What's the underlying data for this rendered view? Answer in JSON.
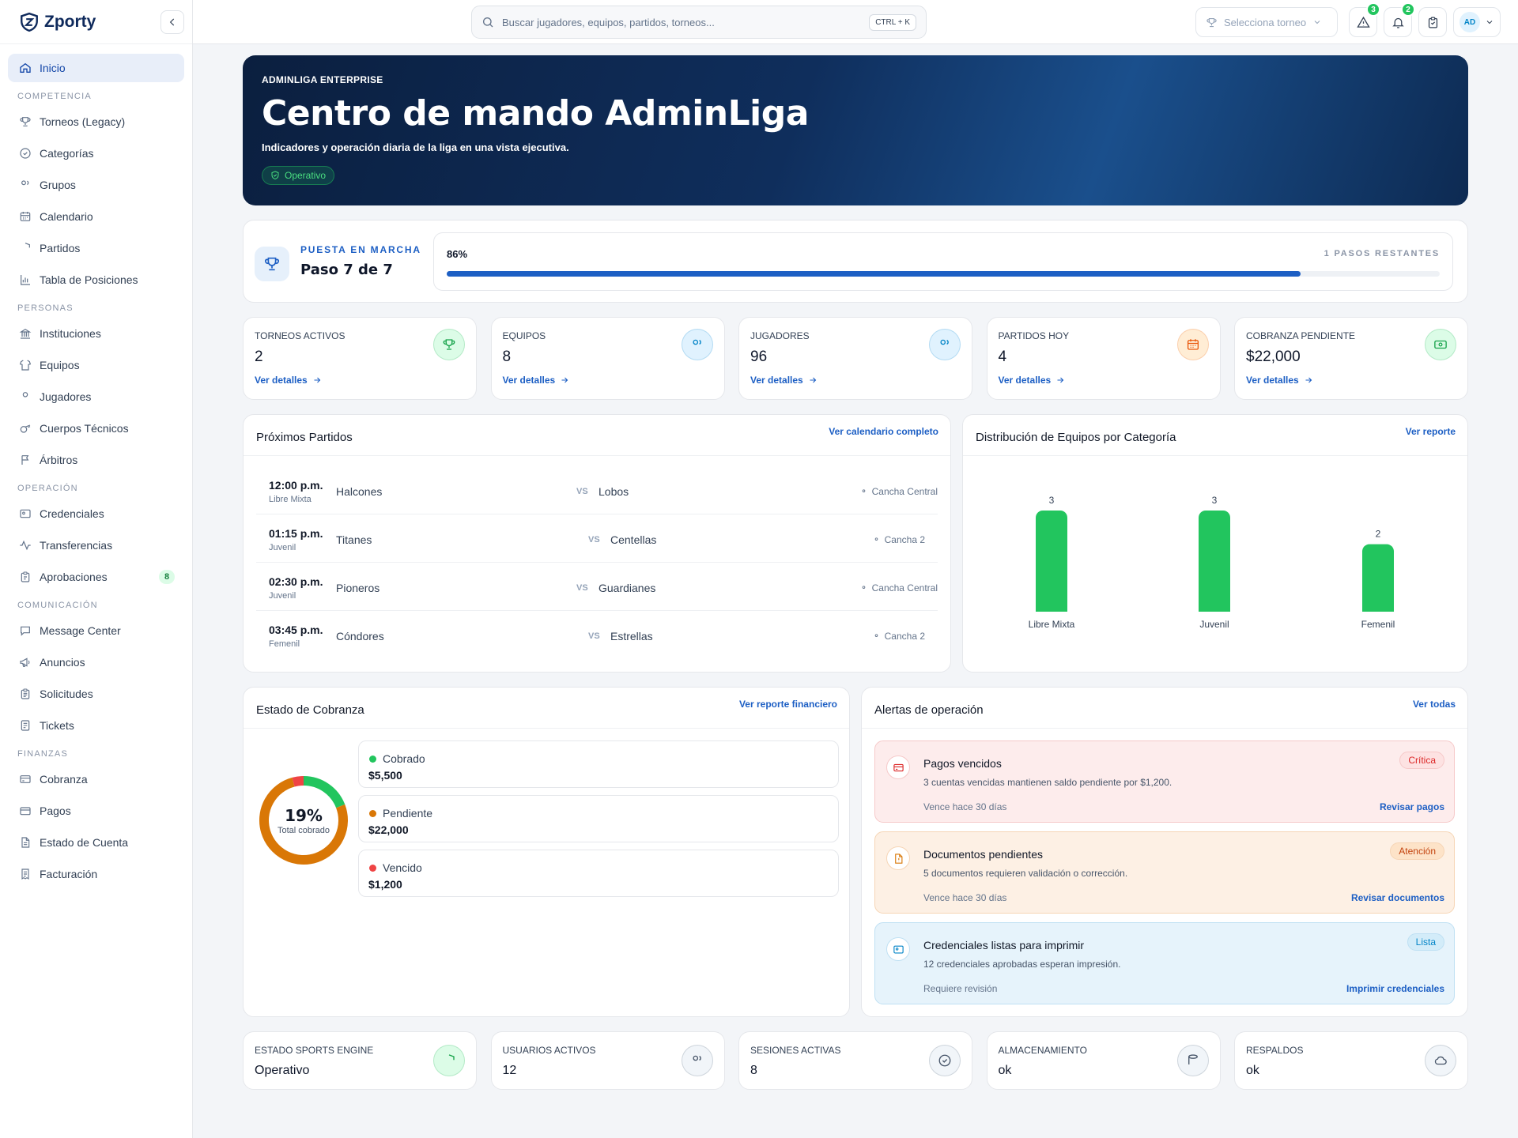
{
  "brand": {
    "name": "Zporty"
  },
  "sidebar": {
    "home": "Inicio",
    "sections": [
      {
        "title": "COMPETENCIA",
        "items": [
          {
            "label": "Torneos (Legacy)",
            "icon": "trophy-icon"
          },
          {
            "label": "Categorías",
            "icon": "circle-check-icon"
          },
          {
            "label": "Grupos",
            "icon": "users-icon"
          },
          {
            "label": "Calendario",
            "icon": "calendar-icon"
          },
          {
            "label": "Partidos",
            "icon": "shield-icon"
          },
          {
            "label": "Tabla de Posiciones",
            "icon": "bar-chart-icon"
          }
        ]
      },
      {
        "title": "PERSONAS",
        "items": [
          {
            "label": "Instituciones",
            "icon": "building-icon"
          },
          {
            "label": "Equipos",
            "icon": "shirt-icon"
          },
          {
            "label": "Jugadores",
            "icon": "user-icon"
          },
          {
            "label": "Cuerpos Técnicos",
            "icon": "whistle-icon"
          },
          {
            "label": "Árbitros",
            "icon": "flag-icon"
          }
        ]
      },
      {
        "title": "OPERACIÓN",
        "items": [
          {
            "label": "Credenciales",
            "icon": "id-card-icon"
          },
          {
            "label": "Transferencias",
            "icon": "activity-icon"
          },
          {
            "label": "Aprobaciones",
            "icon": "clipboard-icon",
            "badge": "8"
          }
        ]
      },
      {
        "title": "COMUNICACIÓN",
        "items": [
          {
            "label": "Message Center",
            "icon": "message-icon"
          },
          {
            "label": "Anuncios",
            "icon": "megaphone-icon"
          },
          {
            "label": "Solicitudes",
            "icon": "clipboard-list-icon"
          },
          {
            "label": "Tickets",
            "icon": "ticket-icon"
          }
        ]
      },
      {
        "title": "FINANZAS",
        "items": [
          {
            "label": "Cobranza",
            "icon": "credit-card-icon"
          },
          {
            "label": "Pagos",
            "icon": "wallet-icon"
          },
          {
            "label": "Estado de Cuenta",
            "icon": "file-icon"
          },
          {
            "label": "Facturación",
            "icon": "receipt-icon"
          }
        ]
      }
    ]
  },
  "topbar": {
    "search_placeholder": "Buscar jugadores, equipos, partidos, torneos...",
    "shortcut": "CTRL + K",
    "tournament_select": "Selecciona torneo",
    "alerts_count": "3",
    "notifications_count": "2",
    "avatar": "AD"
  },
  "hero": {
    "eyebrow": "ADMINLIGA ENTERPRISE",
    "title": "Centro de mando AdminLiga",
    "subtitle": "Indicadores y operación diaria de la liga en una vista ejecutiva.",
    "status": "Operativo"
  },
  "onboarding": {
    "eyebrow": "PUESTA EN MARCHA",
    "step": "Paso 7 de 7",
    "percent_label": "86%",
    "progress": 0.86,
    "remaining": "1 PASOS RESTANTES"
  },
  "stats": [
    {
      "label": "TORNEOS ACTIVOS",
      "value": "2",
      "link": "Ver detalles",
      "icon": "trophy-icon",
      "color": "#16a34a",
      "bg": "#dcfce7"
    },
    {
      "label": "EQUIPOS",
      "value": "8",
      "link": "Ver detalles",
      "icon": "users-icon",
      "color": "#0284c7",
      "bg": "#e0f2fe"
    },
    {
      "label": "JUGADORES",
      "value": "96",
      "link": "Ver detalles",
      "icon": "users-icon",
      "color": "#0284c7",
      "bg": "#e0f2fe"
    },
    {
      "label": "PARTIDOS HOY",
      "value": "4",
      "link": "Ver detalles",
      "icon": "calendar-icon",
      "color": "#ea580c",
      "bg": "#ffedd5"
    },
    {
      "label": "COBRANZA PENDIENTE",
      "value": "$22,000",
      "link": "Ver detalles",
      "icon": "banknote-icon",
      "color": "#16a34a",
      "bg": "#dcfce7"
    }
  ],
  "matches": {
    "title": "Próximos Partidos",
    "link": "Ver calendario completo",
    "items": [
      {
        "time": "12:00 p.m.",
        "category": "Libre Mixta",
        "home": "Halcones",
        "vs": "VS",
        "away": "Lobos",
        "venue": "Cancha Central"
      },
      {
        "time": "01:15 p.m.",
        "category": "Juvenil",
        "home": "Titanes",
        "vs": "VS",
        "away": "Centellas",
        "venue": "Cancha 2"
      },
      {
        "time": "02:30 p.m.",
        "category": "Juvenil",
        "home": "Pioneros",
        "vs": "VS",
        "away": "Guardianes",
        "venue": "Cancha Central"
      },
      {
        "time": "03:45 p.m.",
        "category": "Femenil",
        "home": "Cóndores",
        "vs": "VS",
        "away": "Estrellas",
        "venue": "Cancha 2"
      }
    ]
  },
  "distribution": {
    "title": "Distribución de Equipos por Categoría",
    "link": "Ver reporte"
  },
  "chart_data": {
    "type": "bar",
    "title": "Distribución de Equipos por Categoría",
    "categories": [
      "Libre Mixta",
      "Juvenil",
      "Femenil"
    ],
    "values": [
      3,
      3,
      2
    ],
    "ylim": [
      0,
      3
    ],
    "color": "#22c55e",
    "grid": false
  },
  "collection": {
    "title": "Estado de Cobranza",
    "link": "Ver reporte financiero",
    "percent": "19%",
    "percent_caption": "Total cobrado",
    "items": [
      {
        "name": "Cobrado",
        "value": "$5,500",
        "amount": 5500,
        "color": "#22c55e"
      },
      {
        "name": "Pendiente",
        "value": "$22,000",
        "amount": 22000,
        "color": "#d97706"
      },
      {
        "name": "Vencido",
        "value": "$1,200",
        "amount": 1200,
        "color": "#ef4444"
      }
    ]
  },
  "alerts": {
    "title": "Alertas de operación",
    "link": "Ver todas",
    "items": [
      {
        "title": "Pagos vencidos",
        "desc": "3 cuentas vencidas mantienen saldo pendiente por $1,200.",
        "due": "Vence hace 30 días",
        "action": "Revisar pagos",
        "badge": "Crítica",
        "icon": "credit-card-icon",
        "bg": "#fdecec",
        "border": "#f6c9c9",
        "badge_bg": "#fde2e2",
        "badge_color": "#dc2626",
        "icon_color": "#dc2626"
      },
      {
        "title": "Documentos pendientes",
        "desc": "5 documentos requieren validación o corrección.",
        "due": "Vence hace 30 días",
        "action": "Revisar documentos",
        "badge": "Atención",
        "icon": "document-icon",
        "bg": "#fdf0e4",
        "border": "#f6d5b5",
        "badge_bg": "#fde3c8",
        "badge_color": "#c2410c",
        "icon_color": "#d97706"
      },
      {
        "title": "Credenciales listas para imprimir",
        "desc": "12 credenciales aprobadas esperan impresión.",
        "due": "Requiere revisión",
        "action": "Imprimir credenciales",
        "badge": "Lista",
        "icon": "id-card-icon",
        "bg": "#e6f3fb",
        "border": "#bfe0f3",
        "badge_bg": "#d3ecf9",
        "badge_color": "#0284c7",
        "icon_color": "#0284c7"
      }
    ]
  },
  "system": [
    {
      "label": "ESTADO SPORTS ENGINE",
      "value": "Operativo",
      "icon": "shield-check-icon",
      "color": "#16a34a",
      "bg": "#dcfce7"
    },
    {
      "label": "USUARIOS ACTIVOS",
      "value": "12",
      "icon": "users-icon",
      "color": "#475569",
      "bg": "#f1f5f9"
    },
    {
      "label": "SESIONES ACTIVAS",
      "value": "8",
      "icon": "check-circle-icon",
      "color": "#475569",
      "bg": "#f1f5f9"
    },
    {
      "label": "ALMACENAMIENTO",
      "value": "ok",
      "icon": "database-icon",
      "color": "#475569",
      "bg": "#f1f5f9"
    },
    {
      "label": "RESPALDOS",
      "value": "ok",
      "icon": "cloud-icon",
      "color": "#475569",
      "bg": "#f1f5f9"
    }
  ]
}
